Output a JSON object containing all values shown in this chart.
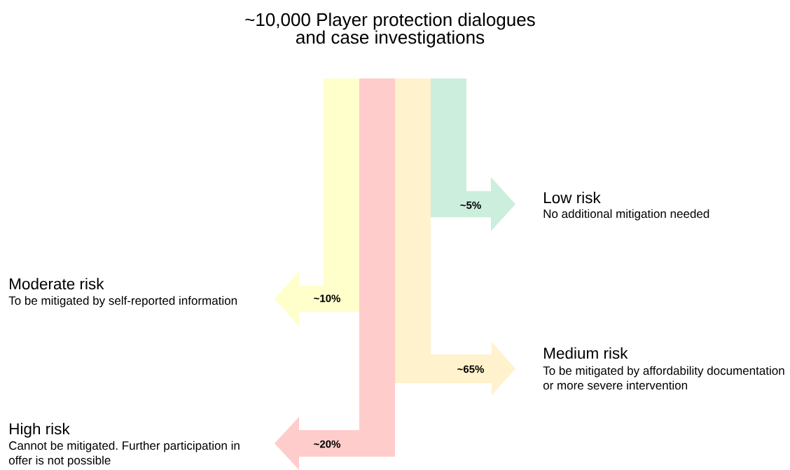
{
  "chart_data": {
    "type": "other",
    "title": "~10,000 Player protection dialogues and case investigations",
    "categories": [
      "Low risk",
      "Moderate risk",
      "Medium risk",
      "High risk"
    ],
    "values": [
      5,
      10,
      65,
      20
    ],
    "value_labels": [
      "~5%",
      "~10%",
      "~65%",
      "~20%"
    ],
    "colors": [
      "#cceedd",
      "#ffffcc",
      "#fff2cc",
      "#ffcccc"
    ],
    "annotations": [
      "No additional mitigation needed",
      "To be mitigated by self-reported information",
      "To be mitigated by affordability documentation or more severe intervention",
      "Cannot be mitigated. Further participation in offer is not possible"
    ]
  }
}
